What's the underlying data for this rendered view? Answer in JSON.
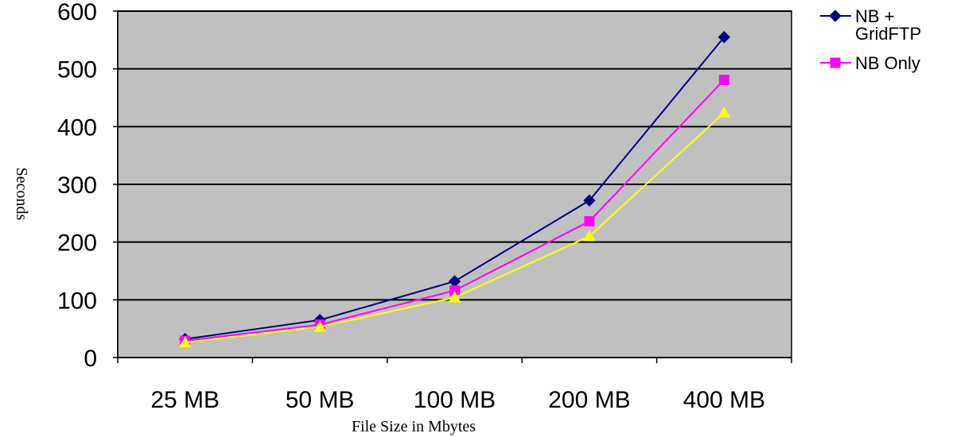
{
  "chart_data": {
    "type": "line",
    "title": "",
    "xlabel": "File Size in Mbytes",
    "ylabel": "Seconds",
    "categories": [
      "25 MB",
      "50 MB",
      "100 MB",
      "200 MB",
      "400 MB"
    ],
    "ylim": [
      0,
      600
    ],
    "yticks": [
      0,
      100,
      200,
      300,
      400,
      500,
      600
    ],
    "grid": true,
    "plot_background": "#c0c0c0",
    "legend_position": "right",
    "series": [
      {
        "name": "NB + GridFTP",
        "legend_lines": [
          "NB +",
          "GridFTP"
        ],
        "color": "#000080",
        "marker": "diamond",
        "values": [
          32,
          65,
          132,
          272,
          555
        ]
      },
      {
        "name": "NB Only",
        "legend_lines": [
          "NB Only"
        ],
        "color": "#ff00ff",
        "marker": "square",
        "values": [
          29,
          57,
          116,
          236,
          481
        ]
      },
      {
        "color": "#ffff00",
        "marker": "triangle",
        "values": [
          26,
          53,
          104,
          210,
          424
        ]
      }
    ]
  }
}
